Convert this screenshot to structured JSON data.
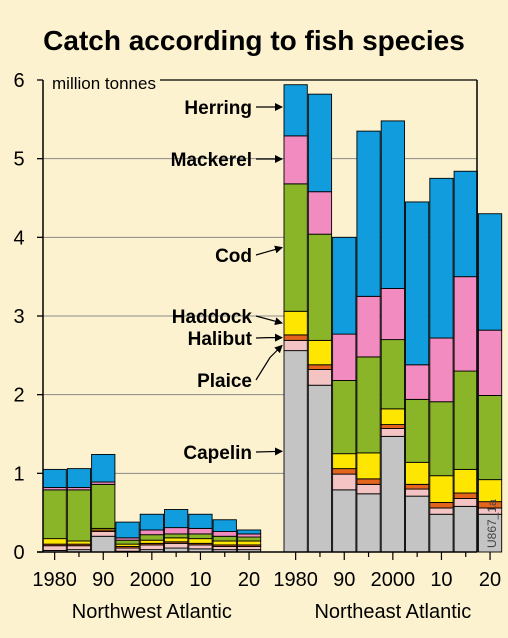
{
  "chart_data": {
    "type": "bar",
    "stacked": true,
    "title": "Catch according to fish species",
    "ylabel": "million tonnes",
    "ylim": [
      0,
      6
    ],
    "yticks": [
      0,
      1,
      2,
      3,
      4,
      5,
      6
    ],
    "grid": "horizontal",
    "image_code": "U867_1a",
    "groups": [
      {
        "name": "Northwest Atlantic",
        "tick_labels": [
          "1980",
          "90",
          "2000",
          "10",
          "20"
        ],
        "categories": [
          "1980",
          "1985",
          "1990",
          "1995",
          "2000",
          "2005",
          "2010",
          "2015",
          "2020"
        ]
      },
      {
        "name": "Northeast Atlantic",
        "tick_labels": [
          "1980",
          "90",
          "2000",
          "10",
          "20"
        ],
        "categories": [
          "1980",
          "1985",
          "1990",
          "1995",
          "2000",
          "2005",
          "2010",
          "2015",
          "2020"
        ]
      }
    ],
    "series": [
      {
        "name": "Capelin",
        "color": "#c4c4c4",
        "values": [
          0.02,
          0.03,
          0.2,
          0.01,
          0.03,
          0.05,
          0.04,
          0.03,
          0.03,
          2.56,
          2.12,
          0.79,
          0.74,
          1.47,
          0.71,
          0.48,
          0.58,
          0.48
        ]
      },
      {
        "name": "Plaice",
        "color": "#f4c4c4",
        "values": [
          0.06,
          0.05,
          0.06,
          0.04,
          0.06,
          0.06,
          0.05,
          0.04,
          0.04,
          0.13,
          0.2,
          0.2,
          0.12,
          0.1,
          0.09,
          0.08,
          0.1,
          0.08
        ]
      },
      {
        "name": "Halibut",
        "color": "#e3641d",
        "values": [
          0.02,
          0.02,
          0.02,
          0.02,
          0.02,
          0.02,
          0.02,
          0.02,
          0.02,
          0.07,
          0.06,
          0.07,
          0.07,
          0.05,
          0.06,
          0.07,
          0.07,
          0.08
        ]
      },
      {
        "name": "Haddock",
        "color": "#ffe600",
        "values": [
          0.07,
          0.04,
          0.02,
          0.03,
          0.04,
          0.05,
          0.06,
          0.05,
          0.05,
          0.3,
          0.31,
          0.19,
          0.33,
          0.2,
          0.28,
          0.34,
          0.3,
          0.28
        ]
      },
      {
        "name": "Cod",
        "color": "#8ab529",
        "values": [
          0.62,
          0.65,
          0.56,
          0.05,
          0.07,
          0.05,
          0.06,
          0.06,
          0.05,
          1.62,
          1.35,
          0.93,
          1.22,
          0.88,
          0.8,
          0.94,
          1.25,
          1.07
        ]
      },
      {
        "name": "Mackerel",
        "color": "#f28bbf",
        "values": [
          0.03,
          0.03,
          0.03,
          0.03,
          0.06,
          0.08,
          0.07,
          0.06,
          0.04,
          0.61,
          0.54,
          0.59,
          0.77,
          0.65,
          0.44,
          0.81,
          1.2,
          0.83
        ]
      },
      {
        "name": "Herring",
        "color": "#119ddd",
        "values": [
          0.23,
          0.24,
          0.35,
          0.2,
          0.2,
          0.23,
          0.18,
          0.15,
          0.05,
          0.65,
          1.24,
          1.23,
          2.1,
          2.13,
          2.07,
          2.03,
          1.34,
          1.48
        ]
      }
    ]
  }
}
